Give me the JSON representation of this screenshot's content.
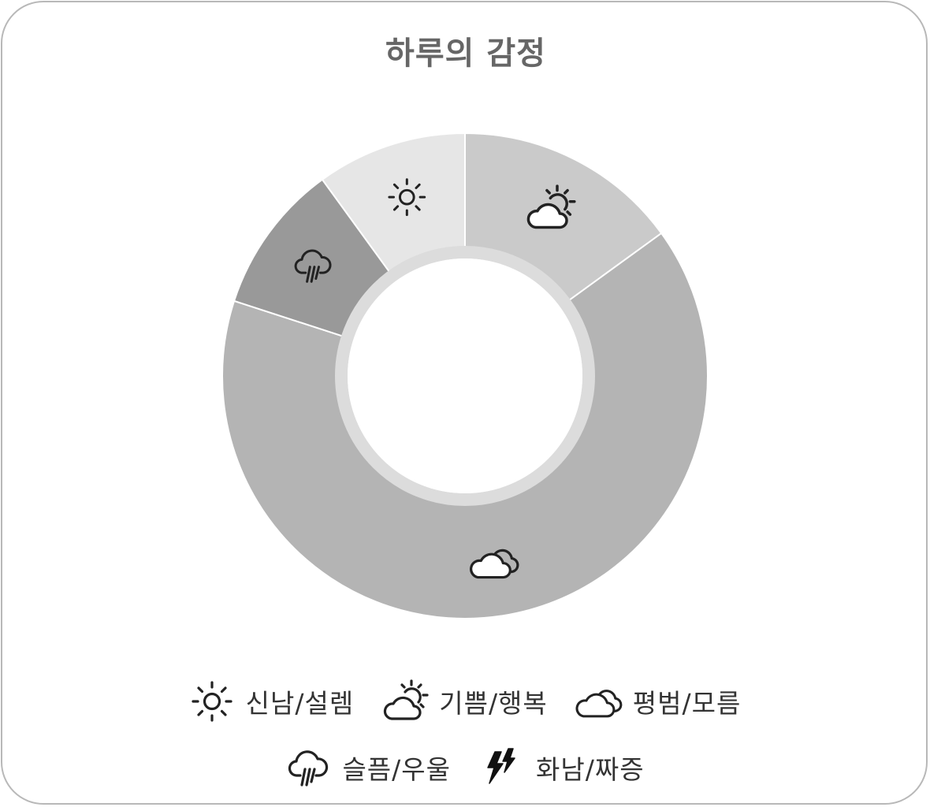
{
  "chart_data": {
    "type": "pie",
    "title": "하루의 감정",
    "categories": [
      "기쁨/행복",
      "평범/모름",
      "슬픔/우울",
      "신남/설렘"
    ],
    "values": [
      15,
      65,
      10,
      10
    ],
    "slices": [
      {
        "category": "기쁨/행복",
        "value": 15,
        "icon": "sun-behind-cloud-icon",
        "color": "#cacaca"
      },
      {
        "category": "평범/모름",
        "value": 65,
        "icon": "clouds-icon",
        "color": "#b4b4b4"
      },
      {
        "category": "슬픔/우울",
        "value": 10,
        "icon": "rain-cloud-icon",
        "color": "#999999"
      },
      {
        "category": "신남/설렘",
        "value": 10,
        "icon": "sun-icon",
        "color": "#e6e6e6"
      }
    ],
    "legend": [
      {
        "label": "신남/설렘",
        "icon": "sun-icon"
      },
      {
        "label": "기쁨/행복",
        "icon": "sun-behind-cloud-icon"
      },
      {
        "label": "평범/모름",
        "icon": "clouds-icon"
      },
      {
        "label": "슬픔/우울",
        "icon": "rain-cloud-icon"
      },
      {
        "label": "화남/짜증",
        "icon": "lightning-icon"
      }
    ],
    "legend_position": "bottom",
    "donut": true
  },
  "colors": {
    "border": "#b8b8b8",
    "title": "#666666",
    "icon": "#222222",
    "inner_ring": "#dcdcdc"
  }
}
